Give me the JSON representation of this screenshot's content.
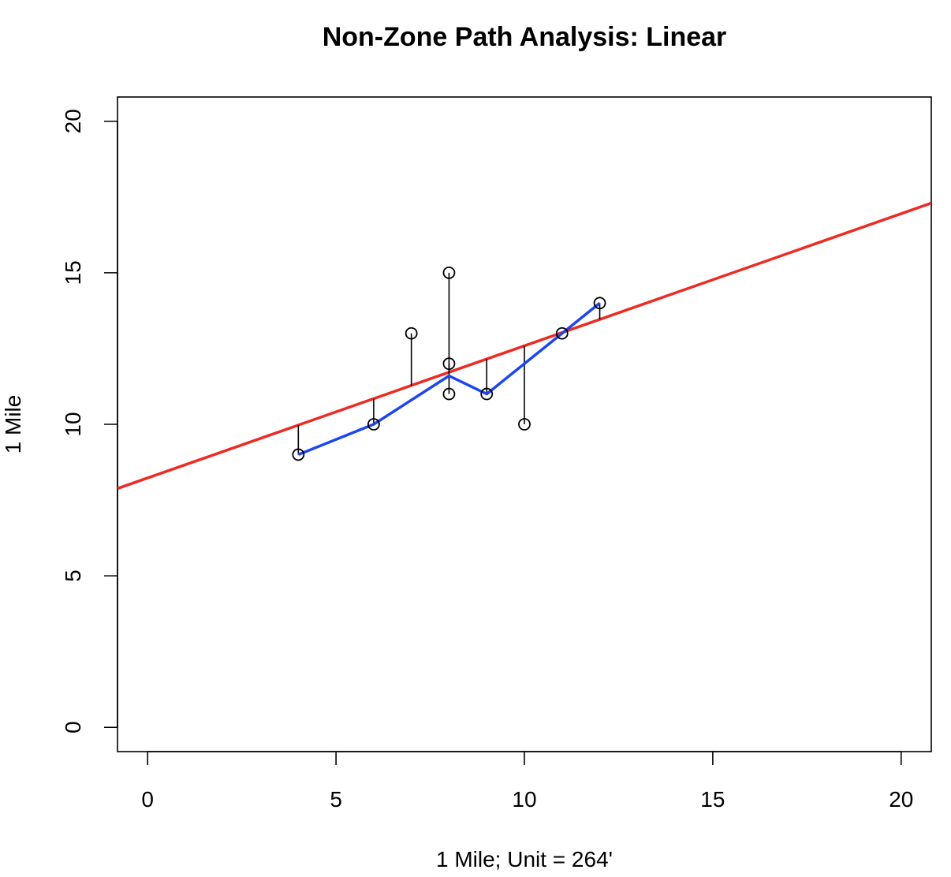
{
  "chart_data": {
    "type": "scatter",
    "title": "Non-Zone Path Analysis: Linear",
    "xlabel": "1 Mile; Unit = 264'",
    "ylabel": "1 Mile",
    "xlim": [
      -0.8,
      20.8
    ],
    "ylim": [
      -0.8,
      20.8
    ],
    "x_ticks": [
      0,
      5,
      10,
      15,
      20
    ],
    "y_ticks": [
      0,
      5,
      10,
      15,
      20
    ],
    "grid": false,
    "legend": "none",
    "points": {
      "x": [
        4,
        6,
        7,
        8,
        8,
        8,
        9,
        10,
        11,
        12
      ],
      "y": [
        9,
        10,
        13,
        15,
        12,
        11,
        11,
        10,
        13,
        14
      ],
      "color": "#000000"
    },
    "regression_line": {
      "intercept": 8.23,
      "slope": 0.436,
      "color": "#ee2a24"
    },
    "path_line": {
      "x": [
        4,
        6,
        8,
        9,
        10,
        11,
        12
      ],
      "y": [
        9,
        10,
        11.6,
        11,
        12,
        13,
        14
      ],
      "color": "#1e46ee"
    }
  }
}
